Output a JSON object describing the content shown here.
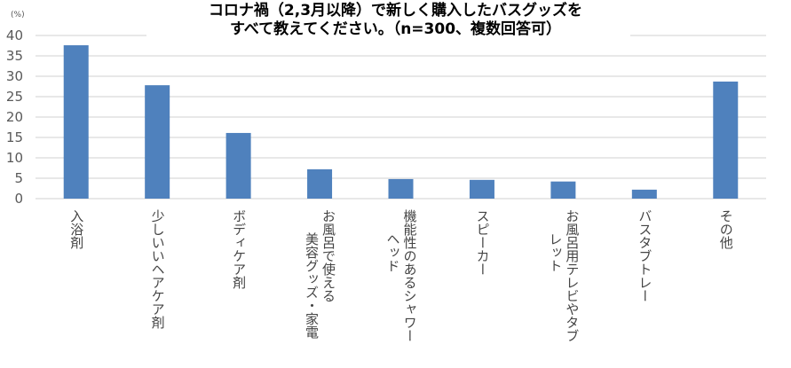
{
  "chart_data": {
    "type": "bar",
    "title": [
      "コロナ禍（2,3月以降）で新しく購入したバスグッズを",
      "すべて教えてください。（n=300、複数回答可）"
    ],
    "unit_label": "(%)",
    "ylim": [
      0,
      40
    ],
    "yticks": [
      "0",
      "5",
      "10",
      "15",
      "20",
      "25",
      "30",
      "35",
      "40"
    ],
    "grid": true,
    "categories": [
      [
        "入浴剤"
      ],
      [
        "少しいいヘアケア剤"
      ],
      [
        "ボディケア剤"
      ],
      [
        "お風呂で使える",
        "美容グッズ・家電"
      ],
      [
        "機能性のあるシャワー",
        "ヘッド"
      ],
      [
        "スピーカー"
      ],
      [
        "お風呂用テレビやタブ",
        "レット"
      ],
      [
        "バスタブトレー"
      ],
      [
        "その他"
      ]
    ],
    "values": [
      37.6,
      27.8,
      16.1,
      7.2,
      4.8,
      4.6,
      4.2,
      2.2,
      28.7
    ],
    "bar_color": "#4f81bd",
    "grid_color": "#d9d9d9"
  }
}
